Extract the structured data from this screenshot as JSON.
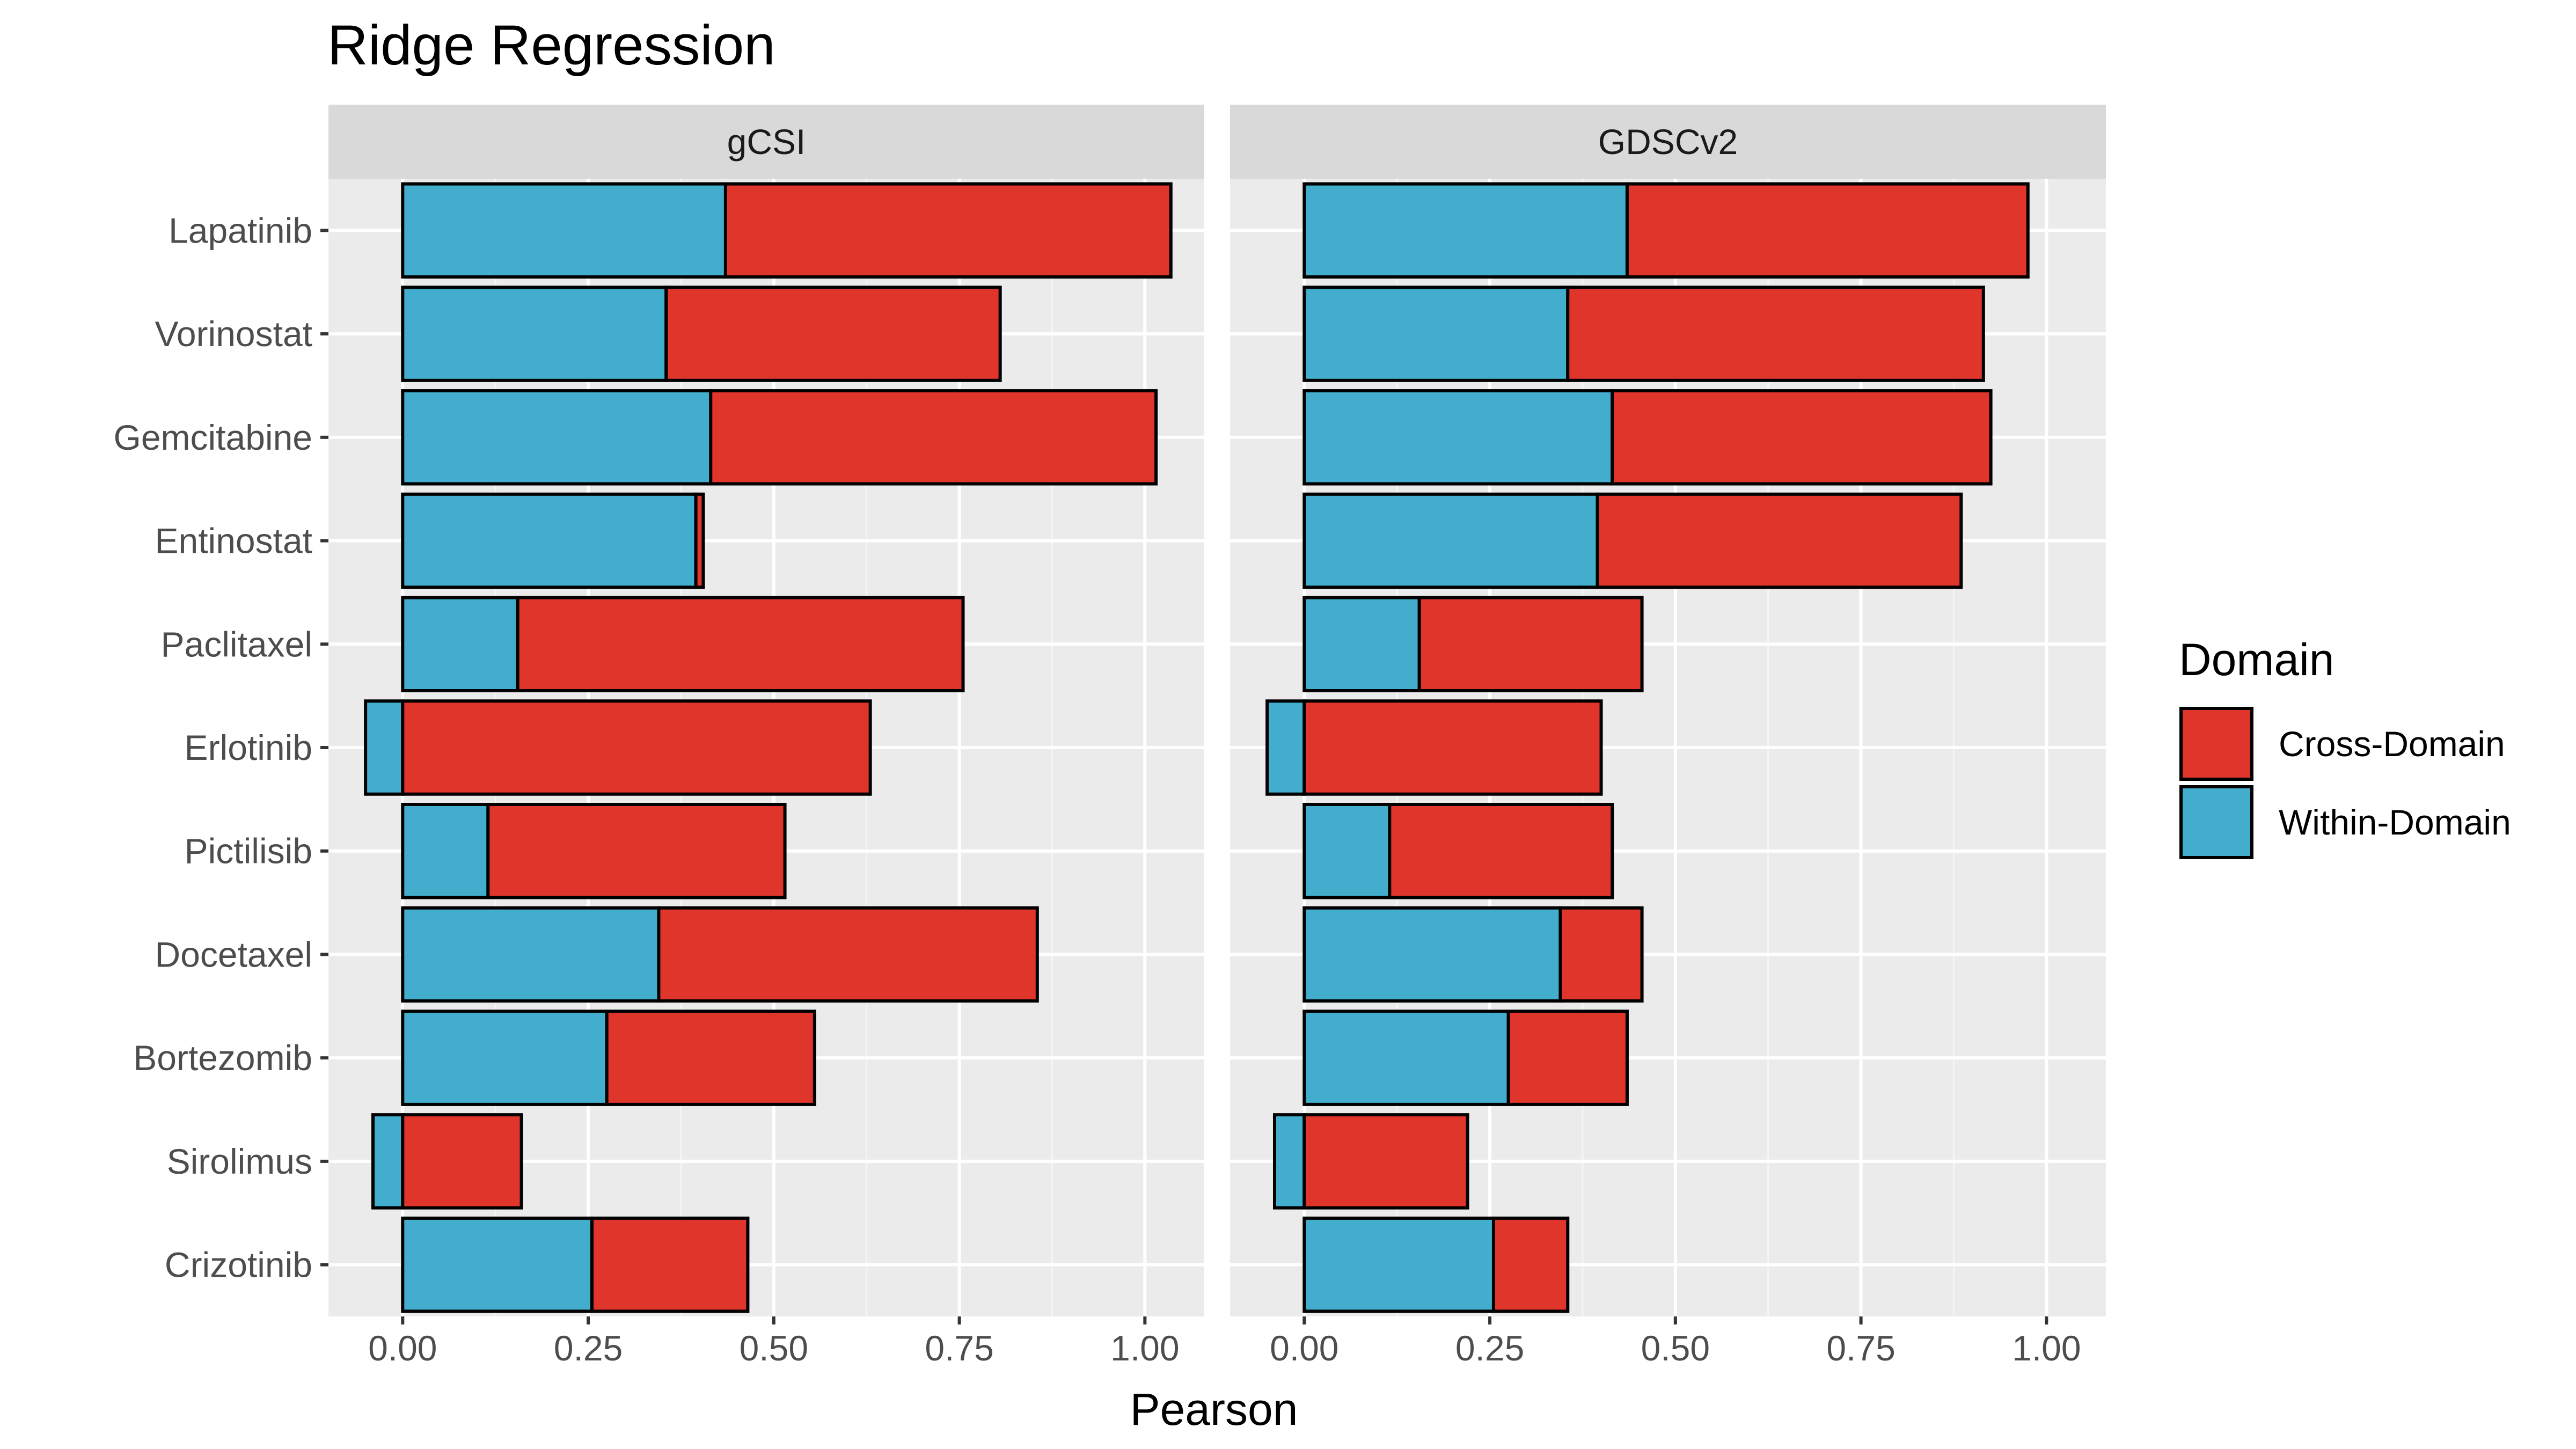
{
  "chart_data": {
    "type": "bar",
    "stacked": true,
    "orientation": "horizontal",
    "title": "Ridge Regression",
    "xlabel": "Pearson",
    "ylabel": "",
    "xlim": [
      -0.1,
      1.08
    ],
    "x_ticks": [
      "0.00",
      "0.25",
      "0.50",
      "0.75",
      "1.00"
    ],
    "x_tick_values": [
      0,
      0.25,
      0.5,
      0.75,
      1.0
    ],
    "grid": true,
    "categories": [
      "Lapatinib",
      "Vorinostat",
      "Gemcitabine",
      "Entinostat",
      "Paclitaxel",
      "Erlotinib",
      "Pictilisib",
      "Docetaxel",
      "Bortezomib",
      "Sirolimus",
      "Crizotinib"
    ],
    "legend": {
      "title": "Domain",
      "position": "right",
      "entries": [
        {
          "label": "Cross-Domain",
          "color": "#e0352b"
        },
        {
          "label": "Within-Domain",
          "color": "#42adcc"
        }
      ]
    },
    "panels": [
      {
        "label": "gCSI",
        "series": [
          {
            "name": "Within-Domain",
            "values": [
              0.435,
              0.355,
              0.415,
              0.395,
              0.155,
              -0.05,
              0.115,
              0.345,
              0.275,
              -0.04,
              0.255
            ]
          },
          {
            "name": "Cross-Domain",
            "values": [
              0.6,
              0.45,
              0.6,
              0.01,
              0.6,
              0.63,
              0.4,
              0.51,
              0.28,
              0.16,
              0.21
            ]
          }
        ]
      },
      {
        "label": "GDSCv2",
        "series": [
          {
            "name": "Within-Domain",
            "values": [
              0.435,
              0.355,
              0.415,
              0.395,
              0.155,
              -0.05,
              0.115,
              0.345,
              0.275,
              -0.04,
              0.255
            ]
          },
          {
            "name": "Cross-Domain",
            "values": [
              0.54,
              0.56,
              0.51,
              0.49,
              0.3,
              0.4,
              0.3,
              0.11,
              0.16,
              0.22,
              0.1
            ]
          }
        ]
      }
    ]
  },
  "colors": {
    "panel_background": "#ebebeb",
    "strip_background": "#d9d9d9",
    "grid_major": "#ffffff",
    "cross_domain": "#e0352b",
    "within_domain": "#42adcc",
    "bar_outline": "#000000"
  }
}
